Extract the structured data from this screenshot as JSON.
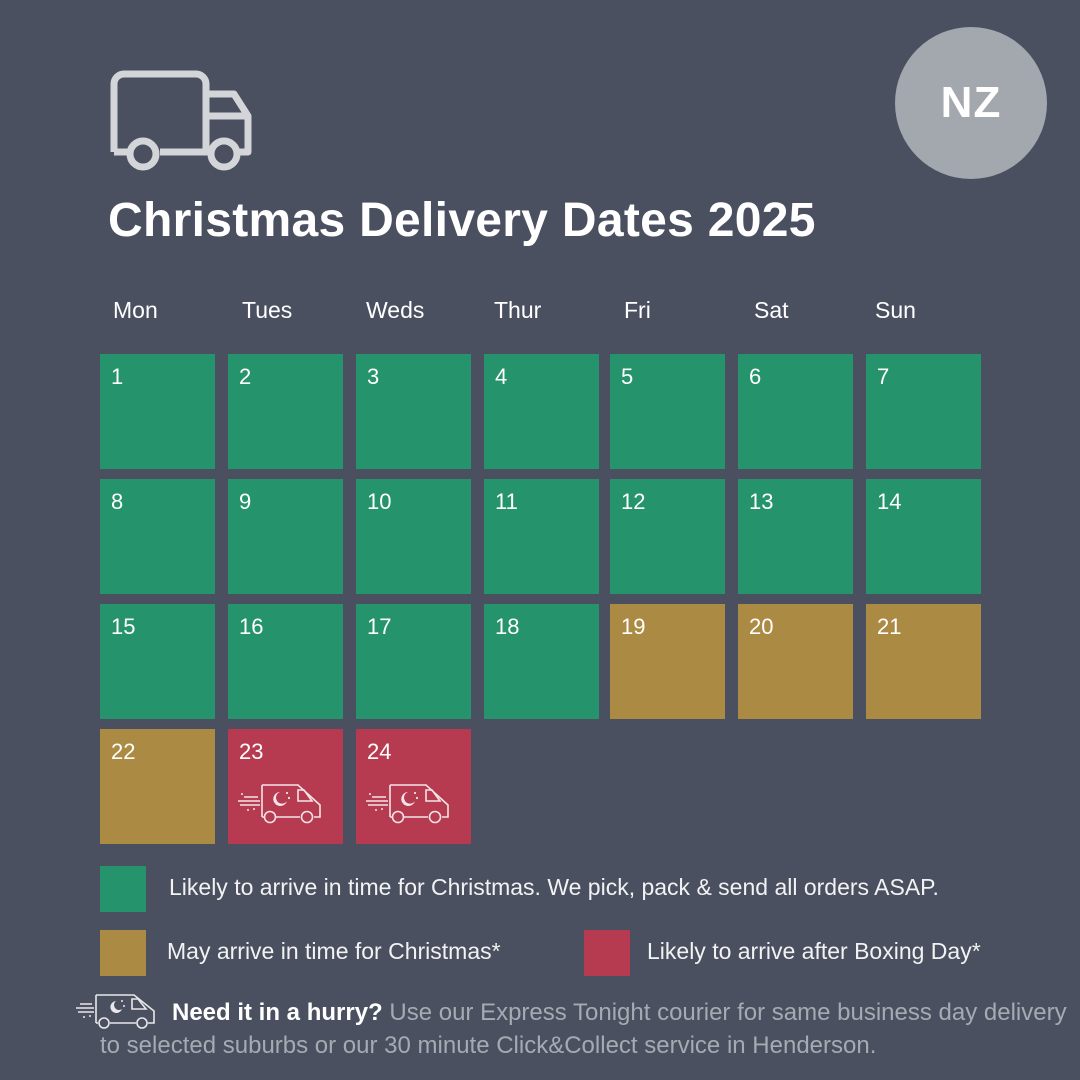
{
  "header": {
    "icon": "delivery-truck-icon",
    "title": "Christmas Delivery Dates 2025",
    "region_badge": "NZ"
  },
  "colors": {
    "background": "#4a5060",
    "likely_on_time": "#25936c",
    "may_arrive": "#ab8a43",
    "after_boxing_day": "#b73b50",
    "badge": "#a3a7ae"
  },
  "calendar": {
    "weekdays": [
      "Mon",
      "Tues",
      "Weds",
      "Thur",
      "Fri",
      "Sat",
      "Sun"
    ],
    "days": [
      {
        "day": "1",
        "status": "likely_on_time"
      },
      {
        "day": "2",
        "status": "likely_on_time"
      },
      {
        "day": "3",
        "status": "likely_on_time"
      },
      {
        "day": "4",
        "status": "likely_on_time"
      },
      {
        "day": "5",
        "status": "likely_on_time"
      },
      {
        "day": "6",
        "status": "likely_on_time"
      },
      {
        "day": "7",
        "status": "likely_on_time"
      },
      {
        "day": "8",
        "status": "likely_on_time"
      },
      {
        "day": "9",
        "status": "likely_on_time"
      },
      {
        "day": "10",
        "status": "likely_on_time"
      },
      {
        "day": "11",
        "status": "likely_on_time"
      },
      {
        "day": "12",
        "status": "likely_on_time"
      },
      {
        "day": "13",
        "status": "likely_on_time"
      },
      {
        "day": "14",
        "status": "likely_on_time"
      },
      {
        "day": "15",
        "status": "likely_on_time"
      },
      {
        "day": "16",
        "status": "likely_on_time"
      },
      {
        "day": "17",
        "status": "likely_on_time"
      },
      {
        "day": "18",
        "status": "likely_on_time"
      },
      {
        "day": "19",
        "status": "may_arrive"
      },
      {
        "day": "20",
        "status": "may_arrive"
      },
      {
        "day": "21",
        "status": "may_arrive"
      },
      {
        "day": "22",
        "status": "may_arrive"
      },
      {
        "day": "23",
        "status": "after_boxing_day",
        "icon": "express-night-van-icon"
      },
      {
        "day": "24",
        "status": "after_boxing_day",
        "icon": "express-night-van-icon"
      }
    ]
  },
  "legend": {
    "likely_on_time": "Likely to arrive in time for Christmas. We pick, pack & send all orders ASAP.",
    "may_arrive": "May arrive in time for Christmas*",
    "after_boxing_day": "Likely to arrive after Boxing Day*"
  },
  "footer": {
    "icon": "express-night-van-icon",
    "lead": "Need it in a hurry?",
    "text": " Use our Express Tonight courier for same business day delivery to selected suburbs or our 30 minute Click&Collect service in Henderson."
  }
}
